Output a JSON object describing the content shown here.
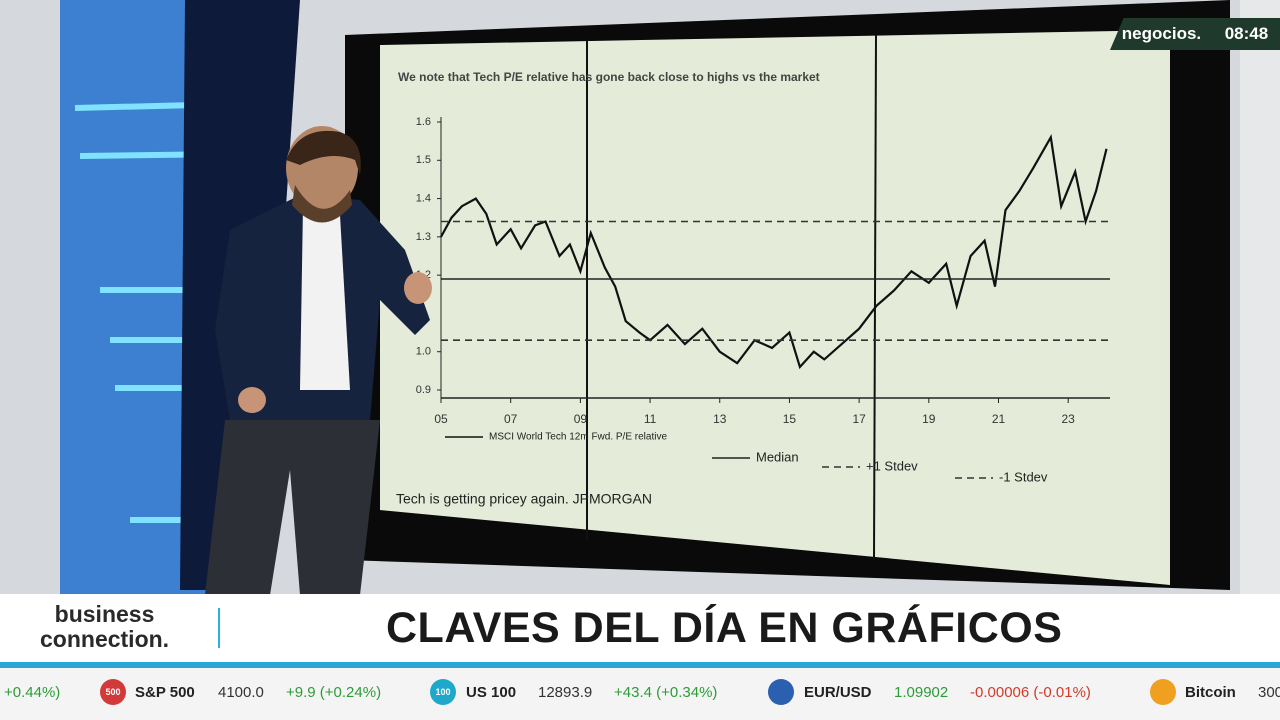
{
  "broadcast": {
    "channel": "negocios.",
    "time": "08:48"
  },
  "lower_third": {
    "brand_line1": "business",
    "brand_line2": "connection.",
    "headline": "CLAVES DEL DÍA EN GRÁFICOS"
  },
  "ticker": {
    "lead_change": "+0.44%)",
    "items": [
      {
        "badge": "500",
        "name": "S&P 500",
        "price": "4100.0",
        "change": "+9.9 (+0.24%)"
      },
      {
        "badge": "100",
        "name": "US 100",
        "price": "12893.9",
        "change": "+43.4 (+0.34%)"
      },
      {
        "name": "EUR/USD",
        "price": "1.09902",
        "change": "-0.00006 (-0.01%)"
      },
      {
        "name": "Bitcoin",
        "price": "300"
      }
    ]
  },
  "chart_data": {
    "type": "line",
    "title": "We note that Tech P/E relative has gone back close to highs vs the market",
    "note": "Tech is getting pricey again. JPMORGAN",
    "xlim": [
      2005,
      2024.2
    ],
    "xticks": [
      {
        "value": 2005,
        "label": "05"
      },
      {
        "value": 2007,
        "label": "07"
      },
      {
        "value": 2009,
        "label": "09"
      },
      {
        "value": 2011,
        "label": "11"
      },
      {
        "value": 2013,
        "label": "13"
      },
      {
        "value": 2015,
        "label": "15"
      },
      {
        "value": 2017,
        "label": "17"
      },
      {
        "value": 2019,
        "label": "19"
      },
      {
        "value": 2021,
        "label": "21"
      },
      {
        "value": 2023,
        "label": "23"
      }
    ],
    "ylim": [
      0.9,
      1.6
    ],
    "yticks": [
      0.9,
      {
        "value": 1,
        "label": "1.0"
      },
      1.2,
      1.3,
      1.4,
      1.5,
      1.6
    ],
    "series": [
      {
        "name": "MSCI World Tech 12m Fwd. P/E relative",
        "color": "#111111",
        "dash": false,
        "x": [
          2005.0,
          2005.3,
          2005.6,
          2006.0,
          2006.3,
          2006.6,
          2007.0,
          2007.3,
          2007.7,
          2008.0,
          2008.4,
          2008.7,
          2009.0,
          2009.3,
          2009.7,
          2010.0,
          2010.3,
          2010.7,
          2011.0,
          2011.5,
          2012.0,
          2012.5,
          2013.0,
          2013.5,
          2014.0,
          2014.5,
          2015.0,
          2015.3,
          2015.7,
          2016.0,
          2016.5,
          2017.0,
          2017.5,
          2018.0,
          2018.5,
          2019.0,
          2019.5,
          2019.8,
          2020.2,
          2020.6,
          2020.9,
          2021.2,
          2021.6,
          2022.0,
          2022.5,
          2022.8,
          2023.2,
          2023.5,
          2023.8,
          2024.1
        ],
        "values": [
          1.3,
          1.35,
          1.38,
          1.4,
          1.36,
          1.28,
          1.32,
          1.27,
          1.33,
          1.34,
          1.25,
          1.28,
          1.21,
          1.31,
          1.22,
          1.17,
          1.08,
          1.05,
          1.03,
          1.07,
          1.02,
          1.06,
          1.0,
          0.97,
          1.03,
          1.01,
          1.05,
          0.96,
          1.0,
          0.98,
          1.02,
          1.06,
          1.12,
          1.16,
          1.21,
          1.18,
          1.23,
          1.12,
          1.25,
          1.29,
          1.17,
          1.37,
          1.42,
          1.48,
          1.56,
          1.38,
          1.47,
          1.34,
          1.42,
          1.53
        ]
      },
      {
        "name": "Median",
        "color": "#222222",
        "dash": false,
        "x": [
          2005,
          2024.2
        ],
        "values": [
          1.19,
          1.19
        ]
      },
      {
        "name": "+1 Stdev",
        "color": "#333333",
        "dash": true,
        "x": [
          2005,
          2024.2
        ],
        "values": [
          1.34,
          1.34
        ]
      },
      {
        "name": "-1 Stdev",
        "color": "#333333",
        "dash": true,
        "x": [
          2005,
          2024.2
        ],
        "values": [
          1.03,
          1.03
        ]
      }
    ]
  }
}
